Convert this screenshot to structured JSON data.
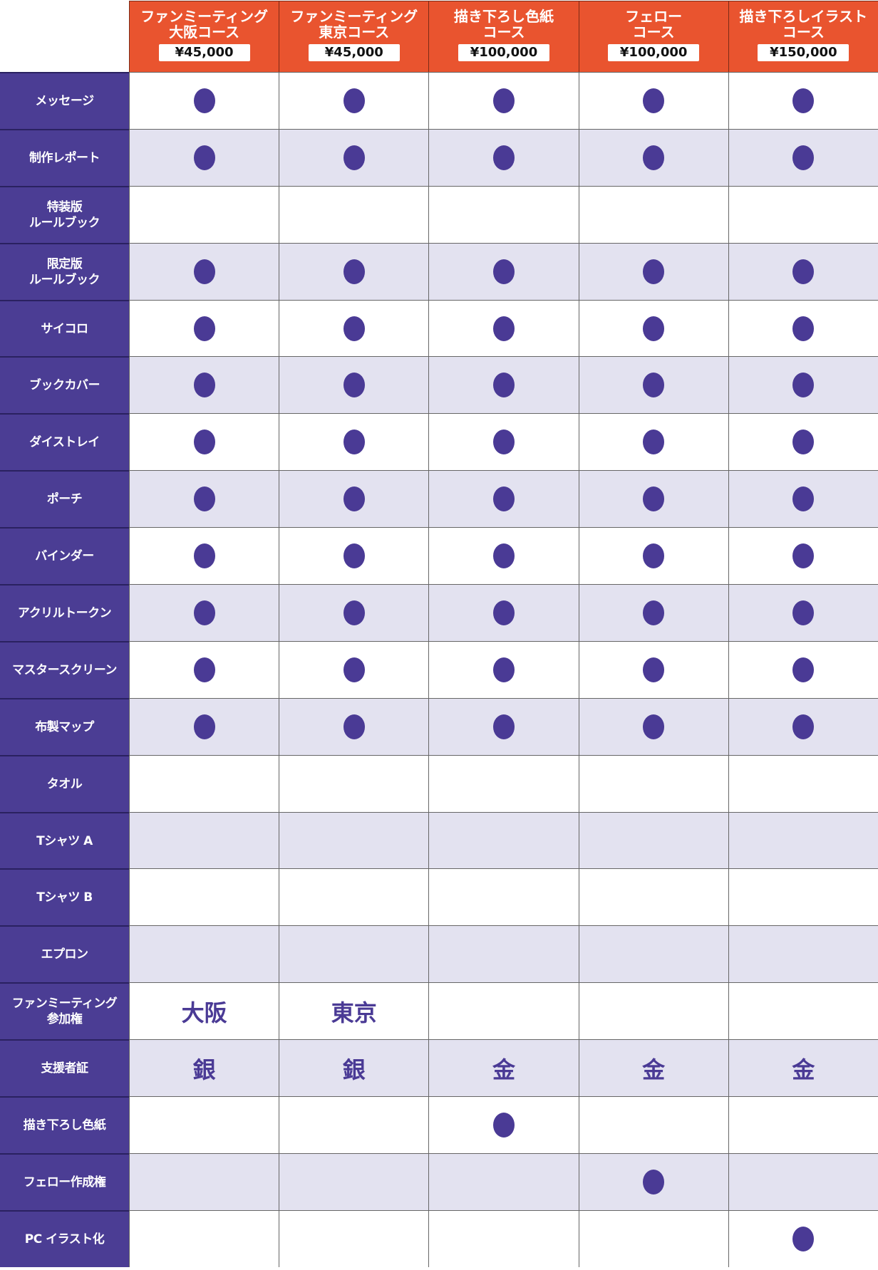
{
  "colors": {
    "header": "#E9542F",
    "label": "#4B3D94",
    "alt_row": "#E3E2F0",
    "mark": "#4A3A95"
  },
  "courses": [
    {
      "name": "ファンミーティング\n大阪コース",
      "price": "¥45,000"
    },
    {
      "name": "ファンミーティング\n東京コース",
      "price": "¥45,000"
    },
    {
      "name": "描き下ろし色紙\nコース",
      "price": "¥100,000"
    },
    {
      "name": "フェロー\nコース",
      "price": "¥100,000"
    },
    {
      "name": "描き下ろしイラスト\nコース",
      "price": "¥150,000"
    }
  ],
  "rows": [
    {
      "label": "メッセージ",
      "cells": [
        {
          "mark": true
        },
        {
          "mark": true
        },
        {
          "mark": true
        },
        {
          "mark": true
        },
        {
          "mark": true
        }
      ]
    },
    {
      "label": "制作レポート",
      "cells": [
        {
          "mark": true
        },
        {
          "mark": true
        },
        {
          "mark": true
        },
        {
          "mark": true
        },
        {
          "mark": true
        }
      ]
    },
    {
      "label": "特装版\nルールブック",
      "cells": [
        {},
        {},
        {},
        {},
        {}
      ]
    },
    {
      "label": "限定版\nルールブック",
      "cells": [
        {
          "mark": true
        },
        {
          "mark": true
        },
        {
          "mark": true
        },
        {
          "mark": true
        },
        {
          "mark": true
        }
      ]
    },
    {
      "label": "サイコロ",
      "cells": [
        {
          "mark": true
        },
        {
          "mark": true
        },
        {
          "mark": true
        },
        {
          "mark": true
        },
        {
          "mark": true
        }
      ]
    },
    {
      "label": "ブックカバー",
      "cells": [
        {
          "mark": true
        },
        {
          "mark": true
        },
        {
          "mark": true
        },
        {
          "mark": true
        },
        {
          "mark": true
        }
      ]
    },
    {
      "label": "ダイストレイ",
      "cells": [
        {
          "mark": true
        },
        {
          "mark": true
        },
        {
          "mark": true
        },
        {
          "mark": true
        },
        {
          "mark": true
        }
      ]
    },
    {
      "label": "ポーチ",
      "cells": [
        {
          "mark": true
        },
        {
          "mark": true
        },
        {
          "mark": true
        },
        {
          "mark": true
        },
        {
          "mark": true
        }
      ]
    },
    {
      "label": "バインダー",
      "cells": [
        {
          "mark": true
        },
        {
          "mark": true
        },
        {
          "mark": true
        },
        {
          "mark": true
        },
        {
          "mark": true
        }
      ]
    },
    {
      "label": "アクリルトークン",
      "cells": [
        {
          "mark": true
        },
        {
          "mark": true
        },
        {
          "mark": true
        },
        {
          "mark": true
        },
        {
          "mark": true
        }
      ]
    },
    {
      "label": "マスタースクリーン",
      "cells": [
        {
          "mark": true
        },
        {
          "mark": true
        },
        {
          "mark": true
        },
        {
          "mark": true
        },
        {
          "mark": true
        }
      ]
    },
    {
      "label": "布製マップ",
      "cells": [
        {
          "mark": true
        },
        {
          "mark": true
        },
        {
          "mark": true
        },
        {
          "mark": true
        },
        {
          "mark": true
        }
      ]
    },
    {
      "label": "タオル",
      "cells": [
        {},
        {},
        {},
        {},
        {}
      ]
    },
    {
      "label": "Tシャツ A",
      "cells": [
        {},
        {},
        {},
        {},
        {}
      ]
    },
    {
      "label": "Tシャツ B",
      "cells": [
        {},
        {},
        {},
        {},
        {}
      ]
    },
    {
      "label": "エプロン",
      "cells": [
        {},
        {},
        {},
        {},
        {}
      ]
    },
    {
      "label": "ファンミーティング\n参加権",
      "cells": [
        {
          "text": "大阪"
        },
        {
          "text": "東京"
        },
        {},
        {},
        {}
      ]
    },
    {
      "label": "支援者証",
      "cells": [
        {
          "text": "銀"
        },
        {
          "text": "銀"
        },
        {
          "text": "金"
        },
        {
          "text": "金"
        },
        {
          "text": "金"
        }
      ]
    },
    {
      "label": "描き下ろし色紙",
      "cells": [
        {},
        {},
        {
          "mark": true
        },
        {},
        {}
      ]
    },
    {
      "label": "フェロー作成権",
      "cells": [
        {},
        {},
        {},
        {
          "mark": true
        },
        {}
      ]
    },
    {
      "label": "PC イラスト化",
      "cells": [
        {},
        {},
        {},
        {},
        {
          "mark": true
        }
      ]
    }
  ]
}
